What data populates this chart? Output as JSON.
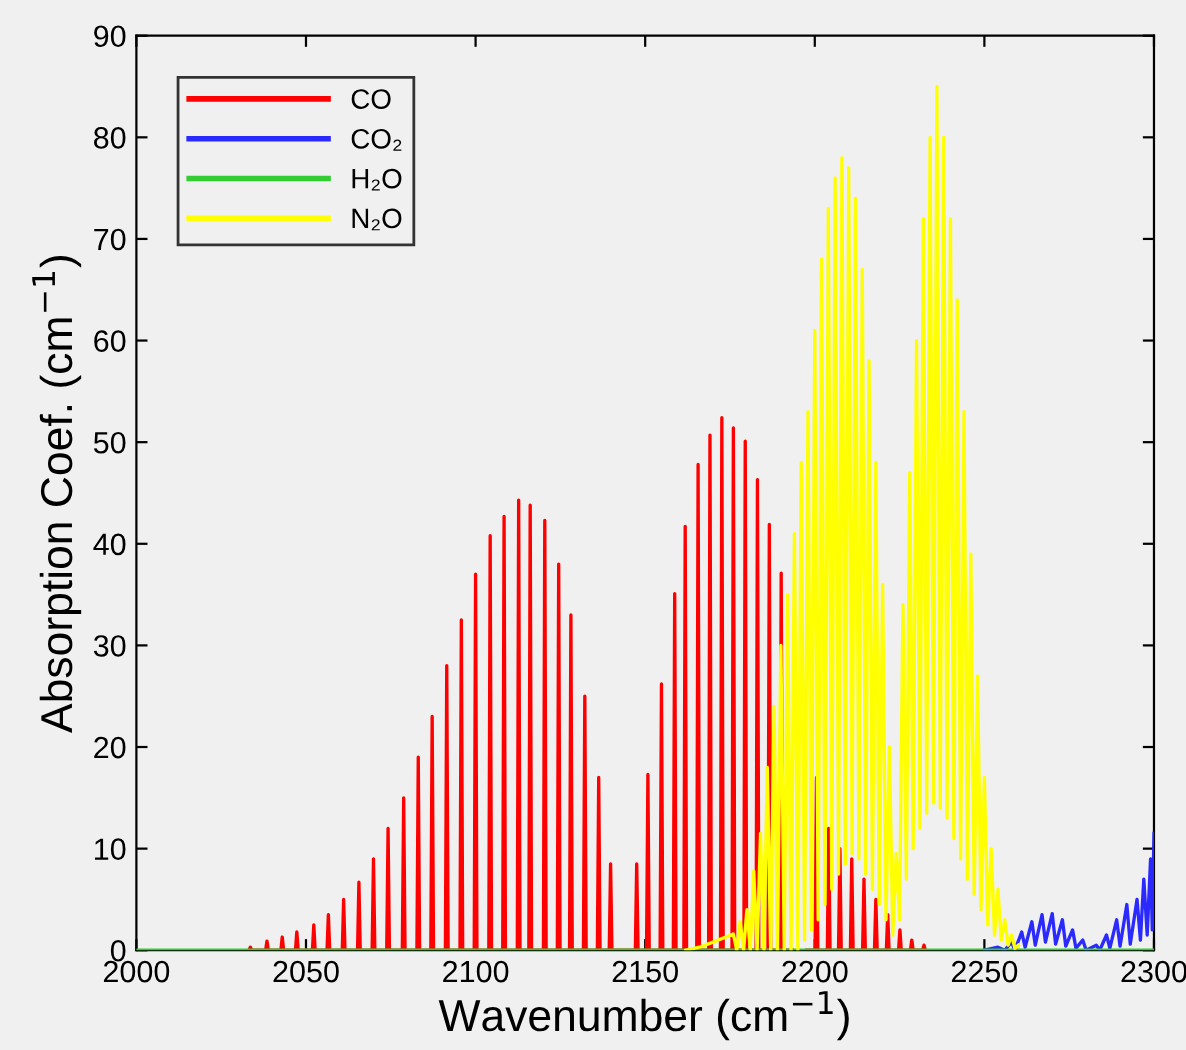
{
  "chart_data": {
    "type": "line",
    "xlabel": "Wavenumber (cm$^{−1}$)",
    "ylabel": "Absorption Coef. (cm$^{−1}$)",
    "xlim": [
      2000,
      2300
    ],
    "ylim": [
      0,
      90
    ],
    "xticks": [
      2000,
      2050,
      2100,
      2150,
      2200,
      2250,
      2300
    ],
    "yticks": [
      0,
      10,
      20,
      30,
      40,
      50,
      60,
      70,
      80,
      90
    ],
    "grid": false,
    "legend": "top left",
    "line_style": "solid",
    "marker": "none",
    "series": [
      {
        "name": "CO",
        "color": "#ff0000",
        "x": [
          2033.2,
          2033.6,
          2034.0,
          2038.1,
          2038.5,
          2038.9,
          2042.6,
          2043.0,
          2043.4,
          2046.9,
          2047.3,
          2047.7,
          2051.9,
          2052.3,
          2052.7,
          2056.2,
          2056.6,
          2057.0,
          2060.7,
          2061.1,
          2061.5,
          2065.2,
          2065.6,
          2066.0,
          2069.5,
          2069.9,
          2070.3,
          2073.8,
          2074.2,
          2074.6,
          2078.4,
          2078.8,
          2079.2,
          2082.7,
          2083.1,
          2083.5,
          2086.8,
          2087.2,
          2087.6,
          2091.1,
          2091.5,
          2091.9,
          2095.4,
          2095.8,
          2096.2,
          2099.6,
          2100.0,
          2100.4,
          2103.9,
          2104.3,
          2104.7,
          2108.0,
          2108.4,
          2108.8,
          2112.3,
          2112.7,
          2113.1,
          2115.7,
          2116.1,
          2116.5,
          2120.0,
          2120.4,
          2120.8,
          2124.1,
          2124.5,
          2124.9,
          2127.7,
          2128.1,
          2128.5,
          2131.8,
          2132.2,
          2132.6,
          2135.9,
          2136.3,
          2136.7,
          2139.4,
          2139.8,
          2140.2,
          2147.1,
          2147.5,
          2147.9,
          2150.4,
          2150.8,
          2151.2,
          2154.4,
          2154.8,
          2155.2,
          2158.3,
          2158.7,
          2159.1,
          2161.4,
          2161.8,
          2162.2,
          2165.2,
          2165.6,
          2166.0,
          2168.7,
          2169.1,
          2169.5,
          2172.2,
          2172.6,
          2173.0,
          2175.6,
          2176.0,
          2176.4,
          2179.1,
          2179.5,
          2179.9,
          2182.7,
          2183.1,
          2183.5,
          2186.2,
          2186.6,
          2187.0,
          2189.7,
          2190.1,
          2190.5,
          2193.3,
          2193.7,
          2194.1,
          2196.8,
          2197.2,
          2197.6,
          2200.1,
          2200.5,
          2200.9,
          2203.7,
          2204.1,
          2204.5,
          2207.0,
          2207.4,
          2207.8,
          2210.5,
          2210.9,
          2211.3,
          2214.1,
          2214.5,
          2214.9,
          2217.6,
          2218.0,
          2218.4,
          2221.1,
          2221.5,
          2221.9,
          2224.7,
          2225.1,
          2225.5,
          2228.2,
          2228.6,
          2229.0,
          2231.8,
          2232.2,
          2232.6
        ],
        "values": [
          0,
          0.3,
          0,
          0,
          0.9,
          0,
          0,
          1.3,
          0,
          0,
          1.8,
          0,
          0,
          2.5,
          0,
          0,
          3.5,
          0,
          0,
          5,
          0,
          0,
          6.7,
          0,
          0,
          9,
          0,
          0,
          12,
          0,
          0,
          15,
          0,
          0,
          19,
          0,
          0,
          23,
          0,
          0,
          28,
          0,
          0,
          32.5,
          0,
          0,
          37,
          0,
          0,
          40.8,
          0,
          0,
          42.7,
          0,
          0,
          44.3,
          0,
          0,
          43.8,
          0,
          0,
          42.3,
          0,
          0,
          38,
          0,
          0,
          33,
          0,
          0,
          25,
          0,
          0,
          17,
          0,
          0,
          8.5,
          0,
          0,
          8.5,
          0,
          0,
          17.3,
          0,
          0,
          26.2,
          0,
          0,
          35.1,
          0,
          0,
          41.7,
          0,
          0,
          47.8,
          0,
          0,
          50.7,
          0,
          0,
          52.4,
          0,
          0,
          51.4,
          0,
          0,
          50.1,
          0,
          0,
          46.3,
          0,
          0,
          41.9,
          0,
          0,
          37.1,
          0,
          0,
          null,
          null,
          null,
          null,
          0,
          0,
          17,
          0,
          0,
          12,
          0,
          0,
          10,
          0,
          0,
          9,
          0,
          0,
          7,
          0,
          0,
          5,
          0,
          0,
          3.5,
          0,
          0,
          2,
          0,
          0,
          1,
          0,
          0,
          0.5,
          0
        ]
      },
      {
        "name": "CO₂",
        "color": "#2a2aff",
        "x": [
          2250,
          2254,
          2256,
          2258,
          2259,
          2261,
          2262,
          2264,
          2265,
          2267,
          2268,
          2270,
          2271,
          2273,
          2274,
          2276,
          2277,
          2279,
          2280,
          2283,
          2284,
          2286,
          2287,
          2289,
          2290,
          2292,
          2293,
          2295,
          2296,
          2297,
          2298,
          2299,
          2299.5,
          2300
        ],
        "values": [
          0,
          0.3,
          0,
          0.8,
          0,
          1.8,
          0.3,
          2.8,
          0.5,
          3.5,
          0.8,
          3.6,
          0.6,
          3,
          0.4,
          2,
          0.2,
          1,
          0,
          0.5,
          0,
          1.5,
          0.2,
          3,
          0.4,
          4.5,
          0.6,
          5,
          1,
          7,
          1.5,
          9,
          2,
          11.5
        ]
      },
      {
        "name": "H₂O",
        "color": "#33cc33",
        "x": [
          2000,
          2300
        ],
        "values": [
          0,
          0
        ]
      },
      {
        "name": "N₂O",
        "color": "#ffff00",
        "x": [
          2162,
          2166,
          2170,
          2176,
          2177,
          2178,
          2179,
          2180,
          2181,
          2182,
          2183,
          2184,
          2185,
          2186,
          2187,
          2188,
          2189,
          2190,
          2191,
          2192,
          2193,
          2194,
          2195,
          2196,
          2197,
          2198,
          2199,
          2200,
          2201,
          2202,
          2203,
          2204,
          2205,
          2206,
          2207,
          2208,
          2209,
          2210,
          2211,
          2212,
          2213,
          2214,
          2215,
          2216,
          2217,
          2218,
          2219,
          2220,
          2221,
          2222,
          2223,
          2224,
          2225,
          2226,
          2227,
          2228,
          2229,
          2230,
          2231,
          2232,
          2233,
          2234,
          2235,
          2236,
          2237,
          2238,
          2239,
          2240,
          2241,
          2242,
          2243,
          2244,
          2245,
          2246,
          2247,
          2248,
          2249,
          2250,
          2251,
          2252,
          2253,
          2254,
          2255,
          2256,
          2257,
          2258,
          2259,
          2260
        ],
        "values": [
          0,
          0.3,
          0.8,
          1.6,
          0,
          2.8,
          0,
          4,
          0,
          7.8,
          0,
          11.5,
          0,
          18,
          0,
          24,
          0,
          30,
          0,
          35,
          0,
          41,
          0,
          48,
          1,
          53,
          2,
          61,
          3,
          68,
          4.5,
          73,
          6,
          76,
          7.5,
          78,
          8.5,
          77,
          9.5,
          74,
          9,
          67,
          7.5,
          58,
          6,
          48,
          4.5,
          36,
          3,
          20,
          1.5,
          9.5,
          3,
          34,
          7,
          47,
          10,
          60,
          12,
          72,
          13.5,
          80,
          14.5,
          85,
          14,
          80,
          13,
          72,
          11,
          64,
          9,
          53,
          7,
          39,
          5.5,
          27,
          4,
          17,
          2.5,
          10,
          1.5,
          6,
          1,
          3,
          0.5,
          1.5,
          0.2,
          0.5
        ]
      }
    ]
  }
}
